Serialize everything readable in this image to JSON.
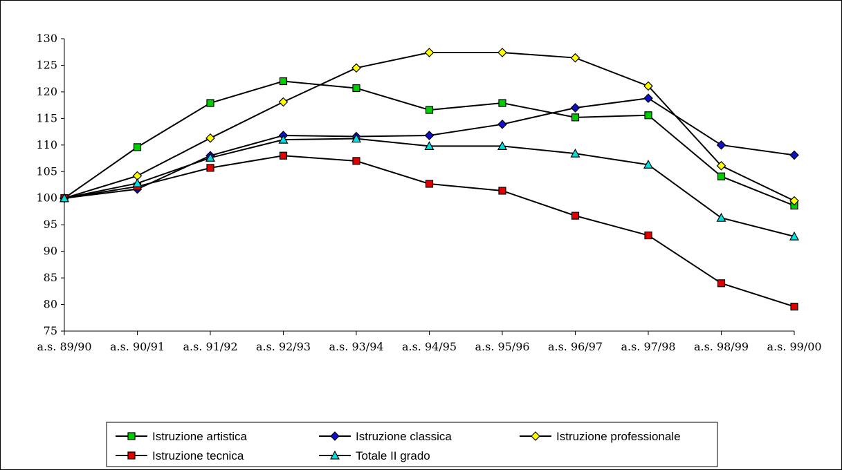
{
  "chart_data": {
    "type": "line",
    "title": "",
    "xlabel": "",
    "ylabel": "",
    "categories": [
      "a.s. 89/90",
      "a.s. 90/91",
      "a.s. 91/92",
      "a.s. 92/93",
      "a.s. 93/94",
      "a.s. 94/95",
      "a.s. 95/96",
      "a.s. 96/97",
      "a.s. 97/98",
      "a.s. 98/99",
      "a.s. 99/00"
    ],
    "ylim": [
      75,
      130
    ],
    "yticks": [
      75,
      80,
      85,
      90,
      95,
      100,
      105,
      110,
      115,
      120,
      125,
      130
    ],
    "grid": false,
    "legend_position": "bottom",
    "series": [
      {
        "name": "Istruzione artistica",
        "color": "#00cc00",
        "marker": "square",
        "values": [
          100,
          109.6,
          117.9,
          122.0,
          120.7,
          116.6,
          117.9,
          115.2,
          115.6,
          104.1,
          98.6
        ]
      },
      {
        "name": "Istruzione classica",
        "color": "#1010c8",
        "marker": "diamond",
        "values": [
          100,
          101.7,
          108.0,
          111.8,
          111.6,
          111.8,
          113.9,
          117.0,
          118.8,
          110.0,
          108.1
        ]
      },
      {
        "name": "Istruzione professionale",
        "color": "#ffff00",
        "marker": "diamond",
        "values": [
          100,
          104.2,
          111.3,
          118.1,
          124.5,
          127.4,
          127.4,
          126.4,
          121.1,
          106.1,
          99.5
        ]
      },
      {
        "name": "Istruzione tecnica",
        "color": "#e00000",
        "marker": "square",
        "values": [
          100,
          102.2,
          105.7,
          108.0,
          107.0,
          102.7,
          101.4,
          96.7,
          93.0,
          84.0,
          79.6
        ]
      },
      {
        "name": "Totale II grado",
        "color": "#00e0e0",
        "marker": "triangle",
        "values": [
          100,
          102.8,
          107.6,
          111.0,
          111.2,
          109.8,
          109.8,
          108.4,
          106.3,
          96.3,
          92.8
        ]
      }
    ]
  }
}
